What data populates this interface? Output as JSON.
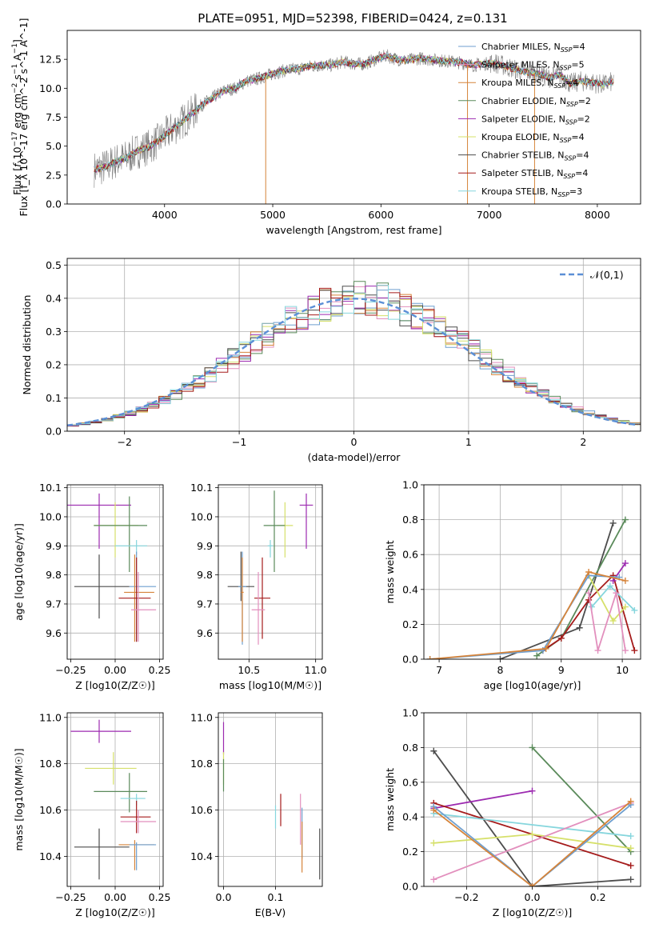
{
  "figure": {
    "title": "PLATE=0951, MJD=52398, FIBERID=0424, z=0.131"
  },
  "colors": {
    "Chabrier MILES": "#6f9fcf",
    "Salpeter MILES": "#e28fbd",
    "Kroupa MILES": "#d6843a",
    "Chabrier ELODIE": "#5a8a5a",
    "Salpeter ELODIE": "#9c2ab0",
    "Kroupa ELODIE": "#d6e06a",
    "Chabrier STELIB": "#4d4d4d",
    "Salpeter STELIB": "#a51b1b",
    "Kroupa STELIB": "#86d6dd",
    "gaussian": "#5b8fd6"
  },
  "chart_data": [
    {
      "id": "spectrum",
      "type": "line",
      "title": "PLATE=0951, MJD=52398, FIBERID=0424, z=0.131",
      "xlabel": "wavelength [Angstrom, rest frame]",
      "ylabel": "Flux [f_λ 10^-17 erg cm^-2 s^-1 A^-1]",
      "xlim": [
        3100,
        8400
      ],
      "ylim": [
        0,
        15
      ],
      "xticks": [
        4000,
        5000,
        6000,
        7000,
        8000
      ],
      "yticks": [
        0.0,
        2.5,
        5.0,
        7.5,
        10.0,
        12.5
      ],
      "grid": false,
      "legend_position": "top-right",
      "legend": [
        {
          "name": "Chabrier MILES",
          "nssp": "4"
        },
        {
          "name": "Salpeter MILES",
          "nssp": "5"
        },
        {
          "name": "Kroupa MILES",
          "nssp": "4"
        },
        {
          "name": "Chabrier ELODIE",
          "nssp": "2"
        },
        {
          "name": "Salpeter ELODIE",
          "nssp": "2"
        },
        {
          "name": "Kroupa ELODIE",
          "nssp": "4"
        },
        {
          "name": "Chabrier STELIB",
          "nssp": "4"
        },
        {
          "name": "Salpeter STELIB",
          "nssp": "4"
        },
        {
          "name": "Kroupa STELIB",
          "nssp": "3"
        }
      ],
      "x": [
        3350,
        3450,
        3550,
        3650,
        3750,
        3850,
        3950,
        4050,
        4150,
        4250,
        4350,
        4450,
        4550,
        4650,
        4750,
        4850,
        4950,
        5050,
        5150,
        5250,
        5350,
        5450,
        5550,
        5650,
        5750,
        5850,
        5950,
        6050,
        6150,
        6250,
        6350,
        6450,
        6550,
        6650,
        6750,
        6850,
        6950,
        7050,
        7150,
        7250,
        7350,
        7450,
        7550,
        7650,
        7750,
        7850,
        7950,
        8050,
        8150
      ],
      "model": [
        3.0,
        3.2,
        3.7,
        4.0,
        4.6,
        4.9,
        5.5,
        6.3,
        7.0,
        7.8,
        8.6,
        9.2,
        9.8,
        10.0,
        10.6,
        10.8,
        11.1,
        11.4,
        11.6,
        11.7,
        11.9,
        12.0,
        12.0,
        12.3,
        12.1,
        12.1,
        12.5,
        12.8,
        12.5,
        12.4,
        12.6,
        12.5,
        12.4,
        12.3,
        12.2,
        12.0,
        12.1,
        12.2,
        11.9,
        11.6,
        11.4,
        11.3,
        10.9,
        11.2,
        10.4,
        10.6,
        10.5,
        10.3,
        10.6
      ],
      "data_line_color": "#7f7f7f",
      "spikes": [
        {
          "x": 4935,
          "y_bottom": 0
        },
        {
          "x": 6800,
          "y_bottom": 0
        },
        {
          "x": 7420,
          "y_bottom": 0
        }
      ]
    },
    {
      "id": "residuals",
      "type": "histogram",
      "xlabel": "(data-model)/error",
      "ylabel": "Normed distribution",
      "xlim": [
        -2.5,
        2.5
      ],
      "ylim": [
        0,
        0.52
      ],
      "xticks": [
        -2,
        -1,
        0,
        1,
        2
      ],
      "yticks": [
        0.0,
        0.1,
        0.2,
        0.3,
        0.4,
        0.5
      ],
      "grid": true,
      "legend_position": "top-right",
      "legend_label": "𝒩(0,1)",
      "bin_width": 0.1
    },
    {
      "id": "age-vs-Z",
      "type": "scatter",
      "xlabel": "Z [log10(Z/Z☉)]",
      "ylabel": "age [log10(age/yr)]",
      "xlim": [
        -0.27,
        0.27
      ],
      "ylim": [
        9.51,
        10.11
      ],
      "xticks": [
        -0.25,
        0.0,
        0.25
      ],
      "xticklabels": [
        "−0.25",
        "0.00",
        "0.25"
      ],
      "yticks": [
        9.6,
        9.7,
        9.8,
        9.9,
        10.0,
        10.1
      ],
      "grid": true,
      "points": [
        {
          "model": "Salpeter ELODIE",
          "x": -0.09,
          "xerr": [
            0.18,
            0.18
          ],
          "y": 10.04,
          "yerr": [
            0.15,
            0.04
          ]
        },
        {
          "model": "Kroupa ELODIE",
          "x": -0.0,
          "xerr": [
            0.12,
            0.13
          ],
          "y": 9.97,
          "yerr": [
            0.11,
            0.08
          ]
        },
        {
          "model": "Chabrier ELODIE",
          "x": 0.08,
          "xerr": [
            0.2,
            0.1
          ],
          "y": 9.97,
          "yerr": [
            0.16,
            0.1
          ]
        },
        {
          "model": "Kroupa STELIB",
          "x": 0.12,
          "xerr": [
            0.12,
            0.06
          ],
          "y": 9.9,
          "yerr": [
            0.03,
            0.02
          ]
        },
        {
          "model": "Chabrier STELIB",
          "x": -0.09,
          "xerr": [
            0.14,
            0.17
          ],
          "y": 9.76,
          "yerr": [
            0.11,
            0.11
          ]
        },
        {
          "model": "Chabrier MILES",
          "x": 0.12,
          "xerr": [
            0.04,
            0.11
          ],
          "y": 9.76,
          "yerr": [
            0.19,
            0.12
          ]
        },
        {
          "model": "Kroupa MILES",
          "x": 0.11,
          "xerr": [
            0.06,
            0.11
          ],
          "y": 9.74,
          "yerr": [
            0.17,
            0.13
          ]
        },
        {
          "model": "Salpeter STELIB",
          "x": 0.12,
          "xerr": [
            0.1,
            0.08
          ],
          "y": 9.72,
          "yerr": [
            0.15,
            0.14
          ]
        },
        {
          "model": "Salpeter MILES",
          "x": 0.13,
          "xerr": [
            0.04,
            0.1
          ],
          "y": 9.68,
          "yerr": [
            0.11,
            0.13
          ]
        }
      ]
    },
    {
      "id": "age-vs-mass",
      "type": "scatter",
      "xlabel": "mass [log10(M/M☉)]",
      "ylabel": "",
      "xlim": [
        10.27,
        11.05
      ],
      "ylim": [
        9.51,
        10.11
      ],
      "xticks": [
        10.5,
        11.0
      ],
      "xticklabels": [
        "10.5",
        "11.0"
      ],
      "yticks": [
        9.6,
        9.7,
        9.8,
        9.9,
        10.0,
        10.1
      ],
      "grid": true,
      "points": [
        {
          "model": "Salpeter ELODIE",
          "x": 10.93,
          "xerr": [
            0.05,
            0.05
          ],
          "y": 10.04,
          "yerr": [
            0.15,
            0.04
          ]
        },
        {
          "model": "Kroupa ELODIE",
          "x": 10.77,
          "xerr": [
            0.06,
            0.06
          ],
          "y": 9.97,
          "yerr": [
            0.11,
            0.08
          ]
        },
        {
          "model": "Chabrier ELODIE",
          "x": 10.69,
          "xerr": [
            0.08,
            0.08
          ],
          "y": 9.97,
          "yerr": [
            0.16,
            0.12
          ]
        },
        {
          "model": "Kroupa STELIB",
          "x": 10.66,
          "xerr": [
            0.02,
            0.02
          ],
          "y": 9.9,
          "yerr": [
            0.04,
            0.02
          ]
        },
        {
          "model": "Chabrier STELIB",
          "x": 10.44,
          "xerr": [
            0.1,
            0.1
          ],
          "y": 9.76,
          "yerr": [
            0.05,
            0.12
          ]
        },
        {
          "model": "Chabrier MILES",
          "x": 10.45,
          "xerr": [
            0.03,
            0.03
          ],
          "y": 9.76,
          "yerr": [
            0.2,
            0.12
          ]
        },
        {
          "model": "Kroupa MILES",
          "x": 10.45,
          "xerr": [
            0.01,
            0.01
          ],
          "y": 9.74,
          "yerr": [
            0.17,
            0.12
          ]
        },
        {
          "model": "Salpeter STELIB",
          "x": 10.6,
          "xerr": [
            0.06,
            0.06
          ],
          "y": 9.72,
          "yerr": [
            0.14,
            0.14
          ]
        },
        {
          "model": "Salpeter MILES",
          "x": 10.57,
          "xerr": [
            0.05,
            0.05
          ],
          "y": 9.68,
          "yerr": [
            0.12,
            0.13
          ]
        }
      ]
    },
    {
      "id": "massweight-vs-age",
      "type": "line",
      "xlabel": "age [log10(age/yr)]",
      "ylabel": "mass weight",
      "xlim": [
        6.75,
        10.3
      ],
      "ylim": [
        0,
        1
      ],
      "xticks": [
        7,
        8,
        9,
        10
      ],
      "yticks": [
        0.0,
        0.2,
        0.4,
        0.6,
        0.8,
        1.0
      ],
      "grid": true,
      "series": [
        {
          "model": "Chabrier STELIB",
          "x": [
            8.0,
            9.3,
            9.85
          ],
          "y": [
            0.0,
            0.18,
            0.78
          ]
        },
        {
          "model": "Chabrier ELODIE",
          "x": [
            8.6,
            9.0,
            10.05
          ],
          "y": [
            0.02,
            0.12,
            0.8
          ]
        },
        {
          "model": "Salpeter STELIB",
          "x": [
            8.7,
            9.0,
            9.45,
            9.85,
            10.2
          ],
          "y": [
            0.05,
            0.12,
            0.34,
            0.48,
            0.05
          ]
        },
        {
          "model": "Salpeter ELODIE",
          "x": [
            9.85,
            10.05
          ],
          "y": [
            0.45,
            0.55
          ]
        },
        {
          "model": "Kroupa ELODIE",
          "x": [
            9.45,
            9.85,
            10.05
          ],
          "y": [
            0.48,
            0.22,
            0.3
          ]
        },
        {
          "model": "Kroupa STELIB",
          "x": [
            9.5,
            9.8,
            10.2
          ],
          "y": [
            0.3,
            0.42,
            0.28
          ]
        },
        {
          "model": "Salpeter MILES",
          "x": [
            9.45,
            9.6,
            9.9,
            10.05
          ],
          "y": [
            0.38,
            0.05,
            0.38,
            0.05
          ]
        },
        {
          "model": "Chabrier MILES",
          "x": [
            6.85,
            8.7,
            9.45,
            9.95
          ],
          "y": [
            0.0,
            0.05,
            0.48,
            0.47
          ]
        },
        {
          "model": "Kroupa MILES",
          "x": [
            6.85,
            8.75,
            9.45,
            10.05
          ],
          "y": [
            0.0,
            0.06,
            0.5,
            0.45
          ]
        }
      ]
    },
    {
      "id": "mass-vs-Z",
      "type": "scatter",
      "xlabel": "Z [log10(Z/Z☉)]",
      "ylabel": "mass [log10(M/M☉)]",
      "xlim": [
        -0.27,
        0.27
      ],
      "ylim": [
        10.27,
        11.02
      ],
      "xticks": [
        -0.25,
        0.0,
        0.25
      ],
      "xticklabels": [
        "−0.25",
        "0.00",
        "0.25"
      ],
      "yticks": [
        10.4,
        10.6,
        10.8,
        11.0
      ],
      "grid": true,
      "points": [
        {
          "model": "Salpeter ELODIE",
          "x": -0.09,
          "xerr": [
            0.16,
            0.18
          ],
          "y": 10.94,
          "yerr": [
            0.05,
            0.05
          ]
        },
        {
          "model": "Kroupa ELODIE",
          "x": -0.01,
          "xerr": [
            0.16,
            0.13
          ],
          "y": 10.78,
          "yerr": [
            0.07,
            0.07
          ]
        },
        {
          "model": "Chabrier ELODIE",
          "x": 0.08,
          "xerr": [
            0.2,
            0.1
          ],
          "y": 10.68,
          "yerr": [
            0.09,
            0.08
          ]
        },
        {
          "model": "Kroupa STELIB",
          "x": 0.12,
          "xerr": [
            0.09,
            0.05
          ],
          "y": 10.65,
          "yerr": [
            0.03,
            0.02
          ]
        },
        {
          "model": "Salpeter STELIB",
          "x": 0.12,
          "xerr": [
            0.09,
            0.08
          ],
          "y": 10.57,
          "yerr": [
            0.07,
            0.07
          ]
        },
        {
          "model": "Salpeter MILES",
          "x": 0.13,
          "xerr": [
            0.1,
            0.1
          ],
          "y": 10.55,
          "yerr": [
            0.05,
            0.05
          ]
        },
        {
          "model": "Kroupa MILES",
          "x": 0.11,
          "xerr": [
            0.09,
            0.11
          ],
          "y": 10.45,
          "yerr": [
            0.11,
            0.02
          ]
        },
        {
          "model": "Chabrier MILES",
          "x": 0.12,
          "xerr": [
            0.04,
            0.11
          ],
          "y": 10.45,
          "yerr": [
            0.11,
            0.01
          ]
        },
        {
          "model": "Chabrier STELIB",
          "x": -0.09,
          "xerr": [
            0.14,
            0.17
          ],
          "y": 10.44,
          "yerr": [
            0.14,
            0.08
          ]
        }
      ]
    },
    {
      "id": "mass-vs-EBV",
      "type": "scatter",
      "xlabel": "E(B-V)",
      "ylabel": "",
      "xlim": [
        -0.01,
        0.19
      ],
      "ylim": [
        10.27,
        11.02
      ],
      "xticks": [
        0.0,
        0.1
      ],
      "xticklabels": [
        "0.0",
        "0.1"
      ],
      "yticks": [
        10.4,
        10.6,
        10.8,
        11.0
      ],
      "grid": true,
      "points": [
        {
          "model": "Salpeter ELODIE",
          "x": 0.0,
          "xerr": [
            0.0,
            0.0
          ],
          "y": 10.91,
          "yerr": [
            0.07,
            0.07
          ]
        },
        {
          "model": "Kroupa ELODIE",
          "x": 0.0,
          "xerr": [
            0.0,
            0.0
          ],
          "y": 10.78,
          "yerr": [
            0.07,
            0.07
          ]
        },
        {
          "model": "Chabrier ELODIE",
          "x": 0.0,
          "xerr": [
            0.0,
            0.0
          ],
          "y": 10.75,
          "yerr": [
            0.07,
            0.07
          ]
        },
        {
          "model": "Kroupa STELIB",
          "x": 0.1,
          "xerr": [
            0.0,
            0.0
          ],
          "y": 10.57,
          "yerr": [
            0.05,
            0.05
          ]
        },
        {
          "model": "Salpeter STELIB",
          "x": 0.11,
          "xerr": [
            0.0,
            0.0
          ],
          "y": 10.6,
          "yerr": [
            0.07,
            0.07
          ]
        },
        {
          "model": "Salpeter MILES",
          "x": 0.148,
          "xerr": [
            0.0,
            0.0
          ],
          "y": 10.56,
          "yerr": [
            0.11,
            0.11
          ]
        },
        {
          "model": "Chabrier MILES",
          "x": 0.151,
          "xerr": [
            0.0,
            0.0
          ],
          "y": 10.5,
          "yerr": [
            0.11,
            0.11
          ]
        },
        {
          "model": "Kroupa MILES",
          "x": 0.151,
          "xerr": [
            0.0,
            0.0
          ],
          "y": 10.44,
          "yerr": [
            0.11,
            0.11
          ]
        },
        {
          "model": "Chabrier STELIB",
          "x": 0.185,
          "xerr": [
            0.0,
            0.0
          ],
          "y": 10.41,
          "yerr": [
            0.11,
            0.11
          ]
        }
      ]
    },
    {
      "id": "massweight-vs-Z",
      "type": "line",
      "xlabel": "Z [log10(Z/Z☉)]",
      "ylabel": "mass weight",
      "xlim": [
        -0.33,
        0.33
      ],
      "ylim": [
        0,
        1
      ],
      "xticks": [
        -0.2,
        0.0,
        0.2
      ],
      "xticklabels": [
        "−0.2",
        "0.0",
        "0.2"
      ],
      "yticks": [
        0.0,
        0.2,
        0.4,
        0.6,
        0.8,
        1.0
      ],
      "grid": true,
      "series": [
        {
          "model": "Chabrier STELIB",
          "x": [
            -0.3,
            0.0,
            0.3
          ],
          "y": [
            0.78,
            0.0,
            0.04
          ]
        },
        {
          "model": "Chabrier ELODIE",
          "x": [
            0.0,
            0.3
          ],
          "y": [
            0.8,
            0.2
          ]
        },
        {
          "model": "Salpeter ELODIE",
          "x": [
            -0.3,
            0.0
          ],
          "y": [
            0.45,
            0.55
          ]
        },
        {
          "model": "Salpeter STELIB",
          "x": [
            -0.3,
            0.3
          ],
          "y": [
            0.48,
            0.12
          ]
        },
        {
          "model": "Kroupa STELIB",
          "x": [
            -0.3,
            0.3
          ],
          "y": [
            0.42,
            0.29
          ]
        },
        {
          "model": "Kroupa ELODIE",
          "x": [
            -0.3,
            0.0,
            0.3
          ],
          "y": [
            0.25,
            0.3,
            0.22
          ]
        },
        {
          "model": "Salpeter MILES",
          "x": [
            -0.3,
            0.3
          ],
          "y": [
            0.04,
            0.48
          ]
        },
        {
          "model": "Chabrier MILES",
          "x": [
            -0.3,
            0.0,
            0.3
          ],
          "y": [
            0.46,
            0.0,
            0.47
          ]
        },
        {
          "model": "Kroupa MILES",
          "x": [
            -0.3,
            0.0,
            0.3
          ],
          "y": [
            0.44,
            0.0,
            0.49
          ]
        }
      ]
    }
  ]
}
